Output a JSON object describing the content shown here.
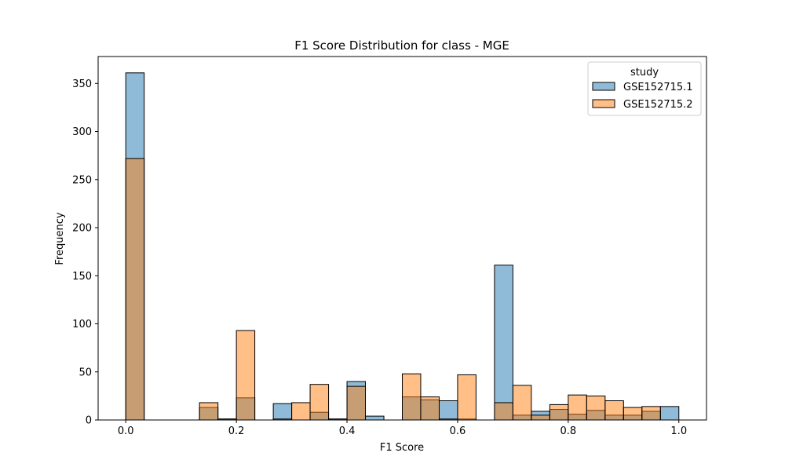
{
  "chart_data": {
    "type": "bar",
    "title": "F1 Score Distribution for class - MGE",
    "xlabel": "F1 Score",
    "ylabel": "Frequency",
    "xlim": [
      -0.05,
      1.05
    ],
    "ylim": [
      0,
      378
    ],
    "xticks": [
      0.0,
      0.2,
      0.4,
      0.6,
      0.8,
      1.0
    ],
    "xtick_labels": [
      "0.0",
      "0.2",
      "0.4",
      "0.6",
      "0.8",
      "1.0"
    ],
    "yticks": [
      0,
      50,
      100,
      150,
      200,
      250,
      300,
      350
    ],
    "ytick_labels": [
      "0",
      "50",
      "100",
      "150",
      "200",
      "250",
      "300",
      "350"
    ],
    "grid": false,
    "legend": {
      "title": "study",
      "placement": "top-right"
    },
    "bin_edges": [
      0.0,
      0.0333,
      0.0667,
      0.1,
      0.1333,
      0.1667,
      0.2,
      0.2333,
      0.2667,
      0.3,
      0.3333,
      0.3667,
      0.4,
      0.4333,
      0.4667,
      0.5,
      0.5333,
      0.5667,
      0.6,
      0.6333,
      0.6667,
      0.7,
      0.7333,
      0.7667,
      0.8,
      0.8333,
      0.8667,
      0.9,
      0.9333,
      0.9667,
      1.0
    ],
    "series": [
      {
        "name": "GSE152715.1",
        "color": "#1f77b4",
        "values": [
          361,
          0,
          0,
          0,
          13,
          1,
          23,
          0,
          17,
          0,
          8,
          1,
          40,
          4,
          0,
          24,
          21,
          20,
          1,
          0,
          161,
          5,
          9,
          11,
          6,
          10,
          5,
          5,
          9,
          14
        ]
      },
      {
        "name": "GSE152715.2",
        "color": "#ff7f0e",
        "values": [
          272,
          0,
          0,
          0,
          18,
          1,
          93,
          0,
          1,
          18,
          37,
          1,
          35,
          0,
          0,
          48,
          24,
          1,
          47,
          0,
          18,
          36,
          5,
          16,
          26,
          25,
          20,
          13,
          14,
          0
        ]
      }
    ]
  }
}
